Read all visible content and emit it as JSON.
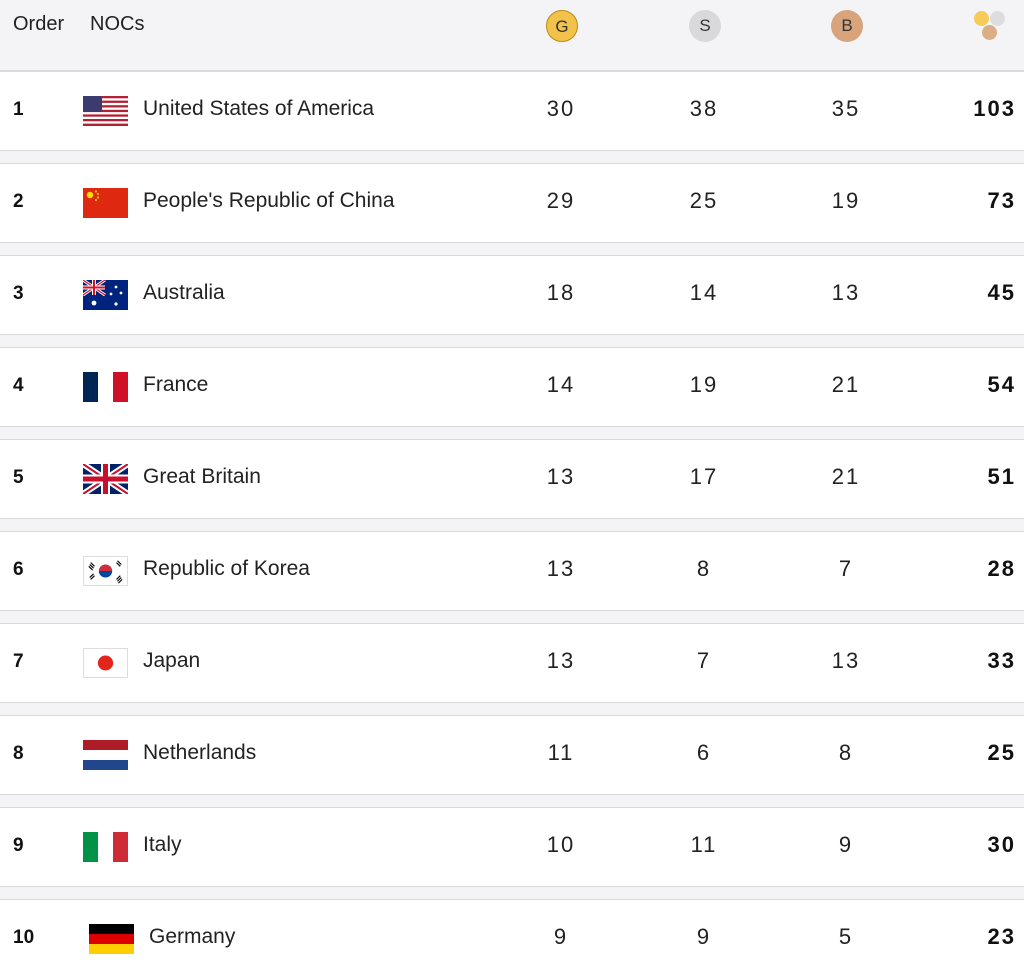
{
  "header": {
    "order_label": "Order",
    "nocs_label": "NOCs",
    "gold_label": "G",
    "silver_label": "S",
    "bronze_label": "B",
    "total_icon": "medals-total-icon"
  },
  "colors": {
    "gold": "#f2c24a",
    "silver": "#d9d9dc",
    "bronze": "#d7a47c",
    "row_bg": "#ffffff",
    "page_bg": "#f4f4f6"
  },
  "rows": [
    {
      "rank": "1",
      "country": "United States of America",
      "flag": "usa-flag-icon",
      "gold": "30",
      "silver": "38",
      "bronze": "35",
      "total": "103"
    },
    {
      "rank": "2",
      "country": "People's Republic of China",
      "flag": "china-flag-icon",
      "gold": "29",
      "silver": "25",
      "bronze": "19",
      "total": "73"
    },
    {
      "rank": "3",
      "country": "Australia",
      "flag": "australia-flag-icon",
      "gold": "18",
      "silver": "14",
      "bronze": "13",
      "total": "45"
    },
    {
      "rank": "4",
      "country": "France",
      "flag": "france-flag-icon",
      "gold": "14",
      "silver": "19",
      "bronze": "21",
      "total": "54"
    },
    {
      "rank": "5",
      "country": "Great Britain",
      "flag": "great-britain-flag-icon",
      "gold": "13",
      "silver": "17",
      "bronze": "21",
      "total": "51"
    },
    {
      "rank": "6",
      "country": "Republic of Korea",
      "flag": "korea-flag-icon",
      "gold": "13",
      "silver": "8",
      "bronze": "7",
      "total": "28"
    },
    {
      "rank": "7",
      "country": "Japan",
      "flag": "japan-flag-icon",
      "gold": "13",
      "silver": "7",
      "bronze": "13",
      "total": "33"
    },
    {
      "rank": "8",
      "country": "Netherlands",
      "flag": "netherlands-flag-icon",
      "gold": "11",
      "silver": "6",
      "bronze": "8",
      "total": "25"
    },
    {
      "rank": "9",
      "country": "Italy",
      "flag": "italy-flag-icon",
      "gold": "10",
      "silver": "11",
      "bronze": "9",
      "total": "30"
    },
    {
      "rank": "10",
      "country": "Germany",
      "flag": "germany-flag-icon",
      "gold": "9",
      "silver": "9",
      "bronze": "5",
      "total": "23"
    }
  ]
}
